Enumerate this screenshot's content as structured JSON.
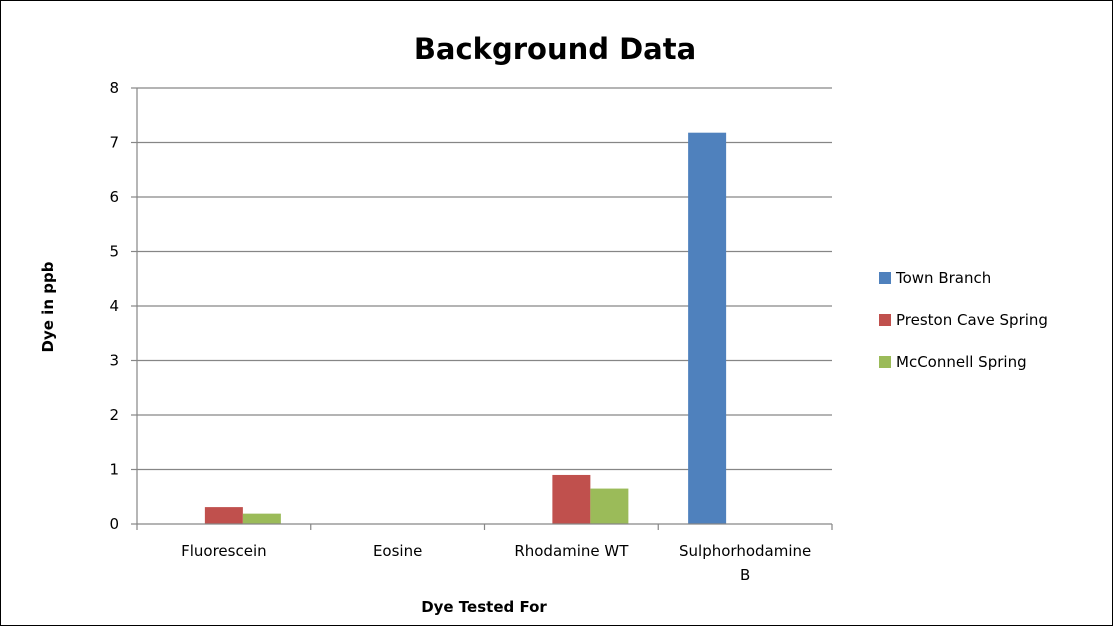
{
  "chart_data": {
    "type": "bar",
    "title": "Background Data",
    "xlabel": "Dye Tested For",
    "ylabel": "Dye in ppb",
    "categories": [
      [
        "Fluorescein"
      ],
      [
        "Eosine"
      ],
      [
        "Rhodamine WT"
      ],
      [
        "Sulphorhodamine",
        "B"
      ]
    ],
    "series": [
      {
        "name": "Town Branch",
        "color": "#4F81BD",
        "values": [
          0,
          0,
          0,
          7.18
        ]
      },
      {
        "name": "Preston Cave Spring",
        "color": "#C0504D",
        "values": [
          0.31,
          0,
          0.9,
          0
        ]
      },
      {
        "name": "McConnell Spring",
        "color": "#9BBB59",
        "values": [
          0.19,
          0,
          0.65,
          0
        ]
      }
    ],
    "ylim": [
      0,
      8
    ],
    "yticks": [
      0,
      1,
      2,
      3,
      4,
      5,
      6,
      7,
      8
    ],
    "grid": true,
    "legend_position": "right"
  }
}
